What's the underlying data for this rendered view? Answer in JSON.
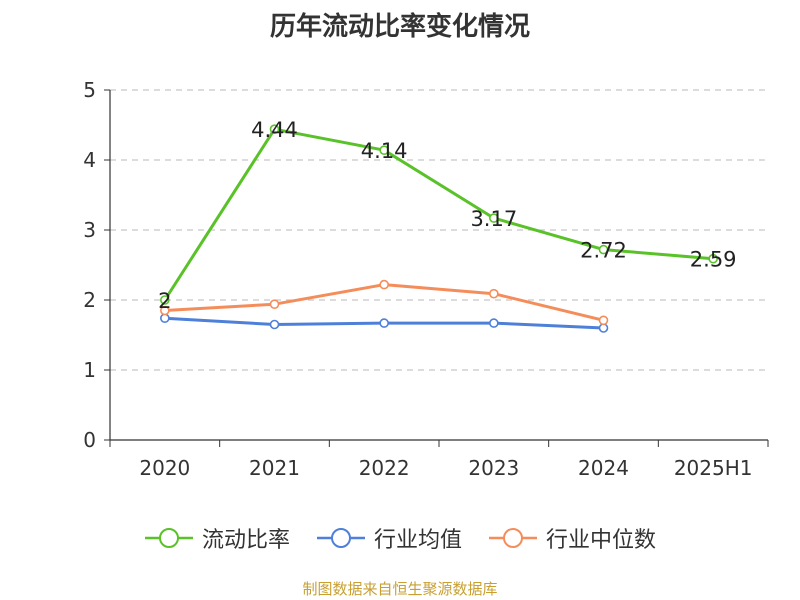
{
  "chart_data": {
    "type": "line",
    "title": "历年流动比率变化情况",
    "xlabel": "",
    "ylabel": "",
    "categories": [
      "2020",
      "2021",
      "2022",
      "2023",
      "2024",
      "2025H1"
    ],
    "ylim": [
      0,
      5
    ],
    "yticks": [
      "0",
      "1",
      "2",
      "3",
      "4",
      "5"
    ],
    "grid": true,
    "legend_position": "bottom",
    "series": [
      {
        "name": "流动比率",
        "values": [
          2,
          4.44,
          4.14,
          3.17,
          2.72,
          2.59
        ],
        "data_labels": [
          "2",
          "4.44",
          "4.14",
          "3.17",
          "2.72",
          "2.59"
        ],
        "color": "#5ac229"
      },
      {
        "name": "行业均值",
        "values": [
          1.74,
          1.65,
          1.67,
          1.67,
          1.6,
          null
        ],
        "color": "#4e80d9"
      },
      {
        "name": "行业中位数",
        "values": [
          1.85,
          1.94,
          2.22,
          2.09,
          1.71,
          null
        ],
        "color": "#f58d5a"
      }
    ]
  },
  "source_note": "制图数据来自恒生聚源数据库",
  "colors": {
    "title": "#333333",
    "axis": "#333333",
    "grid": "#c8c8c8",
    "source_note": "#c8a032"
  }
}
